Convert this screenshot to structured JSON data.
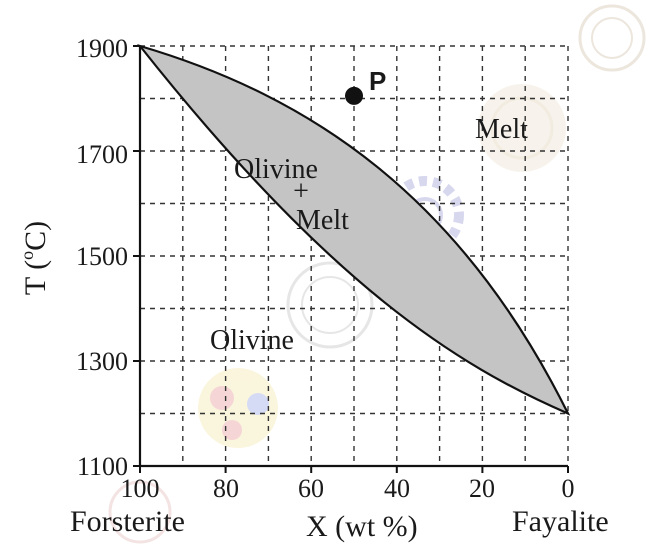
{
  "diagram": {
    "y_axis": {
      "title_main": "T (",
      "title_sup": "o",
      "title_end": "C)",
      "ticks": [
        "1100",
        "1300",
        "1500",
        "1700",
        "1900"
      ]
    },
    "x_axis": {
      "title": "X (wt %)",
      "ticks": [
        "100",
        "80",
        "60",
        "40",
        "20",
        "0"
      ],
      "left_endmember": "Forsterite",
      "right_endmember": "Fayalite"
    },
    "fields": {
      "melt": "Melt",
      "olivine_plus_melt_1": "Olivine",
      "olivine_plus_melt_plus": "+",
      "olivine_plus_melt_2": "Melt",
      "olivine": "Olivine"
    },
    "point": {
      "label": "P",
      "x_wt_pct": 50,
      "t_c": 1805
    },
    "colors": {
      "two_phase_fill": "#c4c4c4",
      "outline": "#111111",
      "point": "#111111"
    }
  }
}
